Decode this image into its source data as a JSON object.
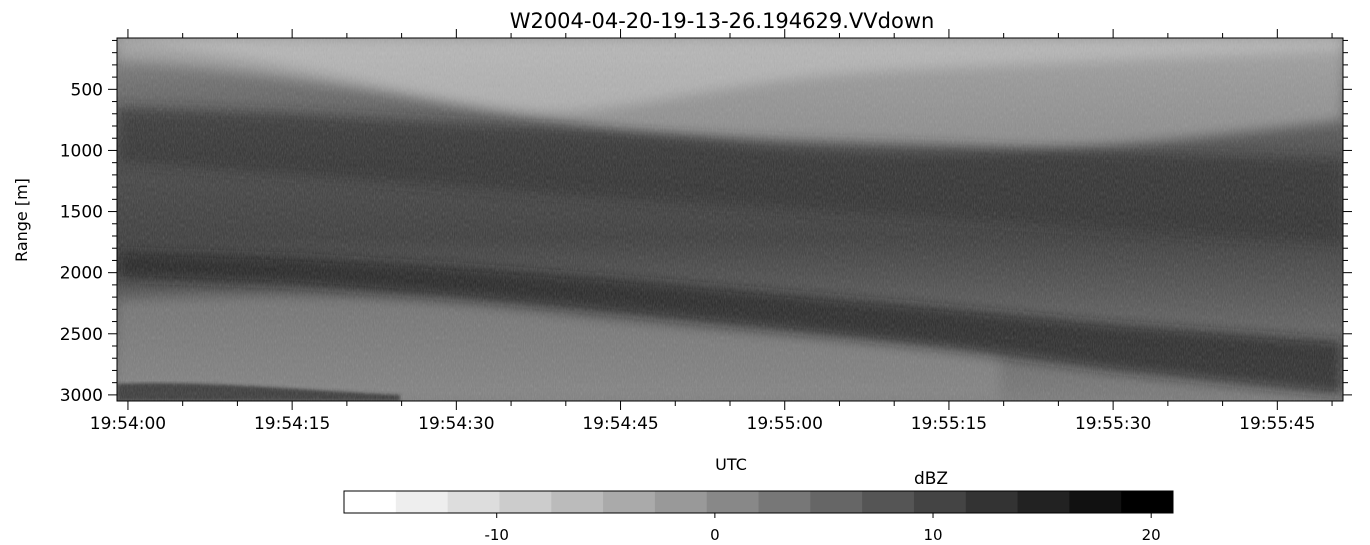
{
  "chart_data": {
    "type": "heatmap",
    "title": "W2004-04-20-19-13-26.194629.VVdown",
    "xlabel": "UTC",
    "ylabel": "Range [m]",
    "x_ticks": [
      "19:54:00",
      "19:54:15",
      "19:54:30",
      "19:54:45",
      "19:55:00",
      "19:55:15",
      "19:55:30",
      "19:55:45"
    ],
    "x_range": [
      "19:53:59",
      "19:55:51"
    ],
    "y_ticks": [
      500,
      1000,
      1500,
      2000,
      2500,
      3000
    ],
    "y_range": [
      80,
      3050
    ],
    "y_inverted": true,
    "colormap": "grayscale (white = low, black = high)",
    "colorbar": {
      "label": "dBZ",
      "ticks": [
        -10,
        0,
        10,
        20
      ],
      "range": [
        -17,
        21
      ],
      "levels": 16
    },
    "layers": [
      {
        "start_range": [
          650,
          700,
          780,
          850,
          920,
          960,
          1020,
          1080
        ],
        "end_range": [
          1100,
          1200,
          1300,
          1400,
          1480,
          1560,
          1650,
          1750
        ]
      },
      {
        "start_range": [
          1820,
          1870,
          1950,
          2050,
          2170,
          2290,
          2420,
          2560
        ],
        "end_range": [
          2050,
          2100,
          2200,
          2330,
          2470,
          2620,
          2800,
          3000
        ]
      }
    ]
  }
}
